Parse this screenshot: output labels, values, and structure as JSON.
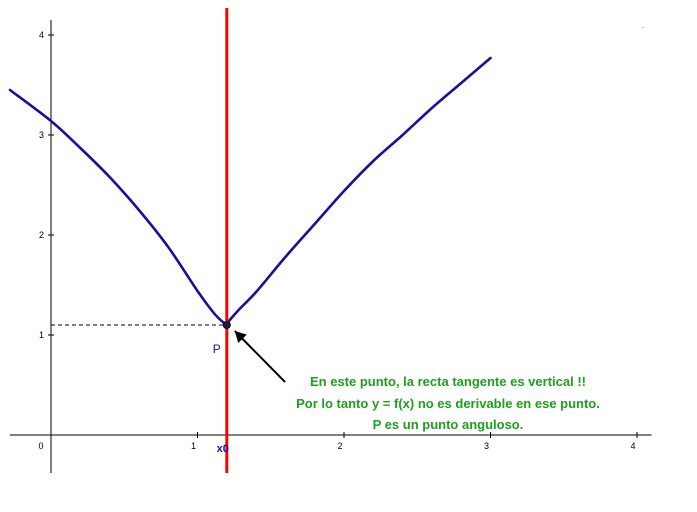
{
  "chart_data": {
    "type": "line",
    "x_ticks": [
      "0",
      "1",
      "2",
      "3",
      "4"
    ],
    "y_ticks": [
      "1",
      "2",
      "3",
      "4"
    ],
    "xlim": [
      -0.28,
      4.1
    ],
    "ylim": [
      -0.38,
      4.15
    ],
    "grid": false,
    "x0_value": 1.2,
    "series": [
      {
        "x": [
          -0.28,
          0.0,
          0.2,
          0.4,
          0.6,
          0.8,
          1.0,
          1.1,
          1.15,
          1.19,
          1.2
        ],
        "y": [
          3.45,
          3.14,
          2.87,
          2.58,
          2.25,
          1.88,
          1.44,
          1.24,
          1.16,
          1.11,
          1.1
        ]
      },
      {
        "x": [
          1.2,
          1.21,
          1.25,
          1.3,
          1.4,
          1.6,
          1.8,
          2.0,
          2.2,
          2.4,
          2.6,
          2.8,
          3.0
        ],
        "y": [
          1.1,
          1.13,
          1.2,
          1.28,
          1.43,
          1.78,
          2.11,
          2.44,
          2.74,
          3.0,
          3.27,
          3.52,
          3.77
        ]
      }
    ],
    "point": {
      "label": "P",
      "x": 1.2,
      "y": 1.1
    },
    "vertical_line_x": 1.2,
    "colors": {
      "curve": "#1a0f9c",
      "vline": "#ff0000",
      "annotation": "#1f9e1f",
      "axis": "#000000"
    },
    "annotation_lines": [
      "En este punto, la recta tangente es vertical !!",
      "Por lo tanto y = f(x) no es derivable en ese punto.",
      "P es un punto anguloso."
    ],
    "x0_label": "x0",
    "corner_mark": "·"
  }
}
